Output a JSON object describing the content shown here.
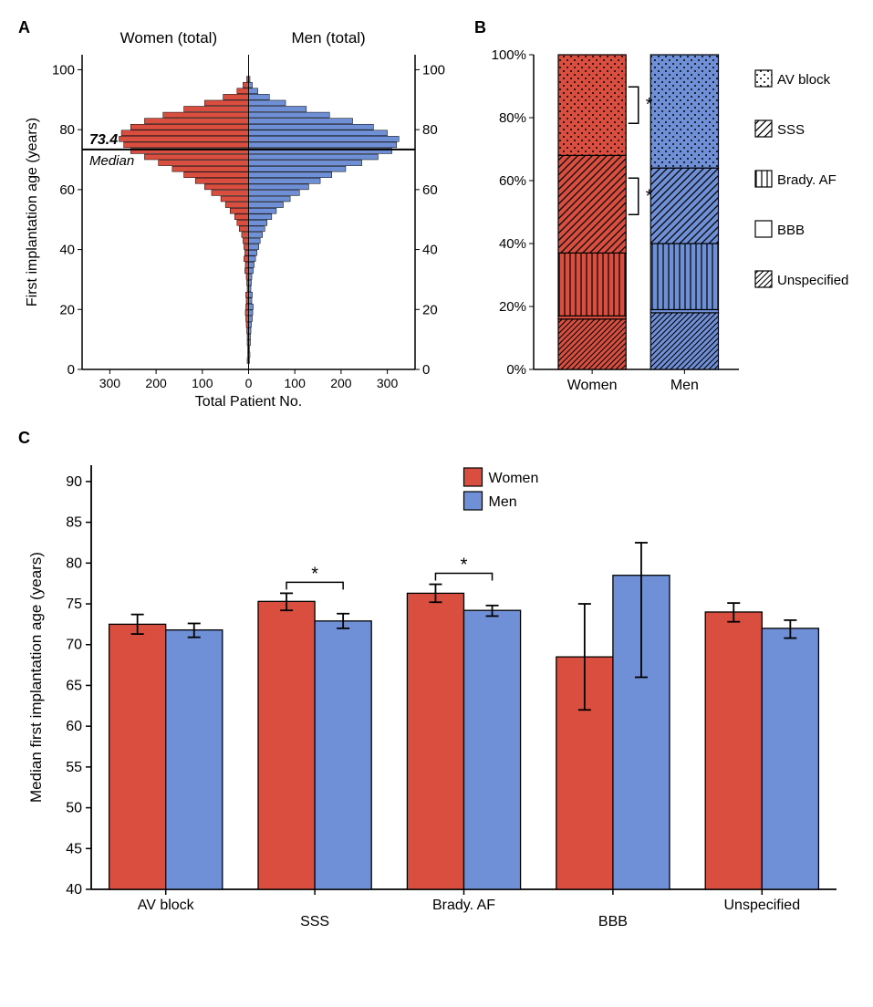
{
  "colors": {
    "women": "#d94e3f",
    "men": "#6f8fd6",
    "axis": "#000000",
    "bg": "#ffffff"
  },
  "panelA": {
    "label": "A",
    "title_left": "Women (total)",
    "title_right": "Men (total)",
    "y_label": "First implantation age (years)",
    "x_label": "Total Patient No.",
    "median_text": "73.4",
    "median_label": "Median",
    "median_value": 73.4,
    "y_ticks": [
      0,
      20,
      40,
      60,
      80,
      100
    ],
    "x_ticks_left": [
      300,
      200,
      100,
      0
    ],
    "x_ticks_right": [
      0,
      100,
      200,
      300
    ],
    "xlim": 360,
    "ylim_top": 105,
    "ylim_bottom": 0,
    "bins": [
      {
        "age": 2,
        "women": 3,
        "men": 2
      },
      {
        "age": 4,
        "women": 2,
        "men": 3
      },
      {
        "age": 6,
        "women": 2,
        "men": 2
      },
      {
        "age": 8,
        "women": 3,
        "men": 4
      },
      {
        "age": 10,
        "women": 3,
        "men": 4
      },
      {
        "age": 12,
        "women": 4,
        "men": 5
      },
      {
        "age": 14,
        "women": 5,
        "men": 6
      },
      {
        "age": 16,
        "women": 6,
        "men": 8
      },
      {
        "age": 18,
        "women": 7,
        "men": 9
      },
      {
        "age": 20,
        "women": 6,
        "men": 10
      },
      {
        "age": 22,
        "women": 5,
        "men": 7
      },
      {
        "age": 24,
        "women": 6,
        "men": 8
      },
      {
        "age": 26,
        "women": 3,
        "men": 5
      },
      {
        "age": 28,
        "women": 4,
        "men": 6
      },
      {
        "age": 30,
        "women": 5,
        "men": 7
      },
      {
        "age": 32,
        "women": 8,
        "men": 10
      },
      {
        "age": 34,
        "women": 7,
        "men": 12
      },
      {
        "age": 36,
        "women": 10,
        "men": 15
      },
      {
        "age": 38,
        "women": 8,
        "men": 18
      },
      {
        "age": 40,
        "women": 10,
        "men": 22
      },
      {
        "age": 42,
        "women": 12,
        "men": 25
      },
      {
        "age": 44,
        "women": 15,
        "men": 30
      },
      {
        "age": 46,
        "women": 20,
        "men": 35
      },
      {
        "age": 48,
        "women": 25,
        "men": 40
      },
      {
        "age": 50,
        "women": 30,
        "men": 50
      },
      {
        "age": 52,
        "women": 40,
        "men": 60
      },
      {
        "age": 54,
        "women": 50,
        "men": 75
      },
      {
        "age": 56,
        "women": 60,
        "men": 90
      },
      {
        "age": 58,
        "women": 80,
        "men": 110
      },
      {
        "age": 60,
        "women": 95,
        "men": 130
      },
      {
        "age": 62,
        "women": 115,
        "men": 155
      },
      {
        "age": 64,
        "women": 140,
        "men": 180
      },
      {
        "age": 66,
        "women": 165,
        "men": 210
      },
      {
        "age": 68,
        "women": 195,
        "men": 245
      },
      {
        "age": 70,
        "women": 225,
        "men": 280
      },
      {
        "age": 72,
        "women": 255,
        "men": 310
      },
      {
        "age": 74,
        "women": 270,
        "men": 320
      },
      {
        "age": 76,
        "women": 280,
        "men": 325
      },
      {
        "age": 78,
        "women": 275,
        "men": 300
      },
      {
        "age": 80,
        "women": 255,
        "men": 270
      },
      {
        "age": 82,
        "women": 225,
        "men": 225
      },
      {
        "age": 84,
        "women": 185,
        "men": 175
      },
      {
        "age": 86,
        "women": 140,
        "men": 125
      },
      {
        "age": 88,
        "women": 95,
        "men": 80
      },
      {
        "age": 90,
        "women": 55,
        "men": 45
      },
      {
        "age": 92,
        "women": 25,
        "men": 20
      },
      {
        "age": 94,
        "women": 12,
        "men": 8
      },
      {
        "age": 96,
        "women": 4,
        "men": 3
      }
    ]
  },
  "panelB": {
    "label": "B",
    "y_ticks": [
      "0%",
      "20%",
      "40%",
      "60%",
      "80%",
      "100%"
    ],
    "x_labels": [
      "Women",
      "Men"
    ],
    "legend": [
      {
        "name": "AV block",
        "pattern": "dots"
      },
      {
        "name": "SSS",
        "pattern": "diag"
      },
      {
        "name": "Brady. AF",
        "pattern": "vert"
      },
      {
        "name": "BBB",
        "pattern": "none"
      },
      {
        "name": "Unspecified",
        "pattern": "diag2"
      }
    ],
    "stacks": {
      "Women": [
        {
          "cat": "Unspecified",
          "value": 16,
          "pattern": "diag2"
        },
        {
          "cat": "BBB",
          "value": 1,
          "pattern": "none"
        },
        {
          "cat": "Brady. AF",
          "value": 20,
          "pattern": "vert"
        },
        {
          "cat": "SSS",
          "value": 31,
          "pattern": "diag"
        },
        {
          "cat": "AV block",
          "value": 32,
          "pattern": "dots"
        }
      ],
      "Men": [
        {
          "cat": "Unspecified",
          "value": 18,
          "pattern": "diag2"
        },
        {
          "cat": "BBB",
          "value": 1,
          "pattern": "none"
        },
        {
          "cat": "Brady. AF",
          "value": 21,
          "pattern": "vert"
        },
        {
          "cat": "SSS",
          "value": 24,
          "pattern": "diag"
        },
        {
          "cat": "AV block",
          "value": 36,
          "pattern": "dots"
        }
      ]
    },
    "sig_marks": [
      {
        "y_center": 84,
        "label": "*"
      },
      {
        "y_center": 55,
        "label": "*"
      }
    ]
  },
  "panelC": {
    "label": "C",
    "y_label": "Median first implantation age (years)",
    "y_ticks": [
      40,
      45,
      50,
      55,
      60,
      65,
      70,
      75,
      80,
      85,
      90
    ],
    "ylim": [
      40,
      92
    ],
    "categories": [
      "AV block",
      "SSS",
      "Brady. AF",
      "BBB",
      "Unspecified"
    ],
    "legend": [
      "Women",
      "Men"
    ],
    "data": [
      {
        "cat": "AV block",
        "women": {
          "val": 72.5,
          "lo": 71.3,
          "hi": 73.7
        },
        "men": {
          "val": 71.8,
          "lo": 70.9,
          "hi": 72.6
        },
        "sig": false
      },
      {
        "cat": "SSS",
        "women": {
          "val": 75.3,
          "lo": 74.2,
          "hi": 76.3
        },
        "men": {
          "val": 72.9,
          "lo": 72.0,
          "hi": 73.8
        },
        "sig": true
      },
      {
        "cat": "Brady. AF",
        "women": {
          "val": 76.3,
          "lo": 75.2,
          "hi": 77.4
        },
        "men": {
          "val": 74.2,
          "lo": 73.5,
          "hi": 74.8
        },
        "sig": true
      },
      {
        "cat": "BBB",
        "women": {
          "val": 68.5,
          "lo": 62.0,
          "hi": 75.0
        },
        "men": {
          "val": 78.5,
          "lo": 66.0,
          "hi": 82.5
        },
        "sig": false
      },
      {
        "cat": "Unspecified",
        "women": {
          "val": 74.0,
          "lo": 72.8,
          "hi": 75.1
        },
        "men": {
          "val": 72.0,
          "lo": 70.8,
          "hi": 73.0
        },
        "sig": false
      }
    ],
    "bar_width": 0.38
  }
}
